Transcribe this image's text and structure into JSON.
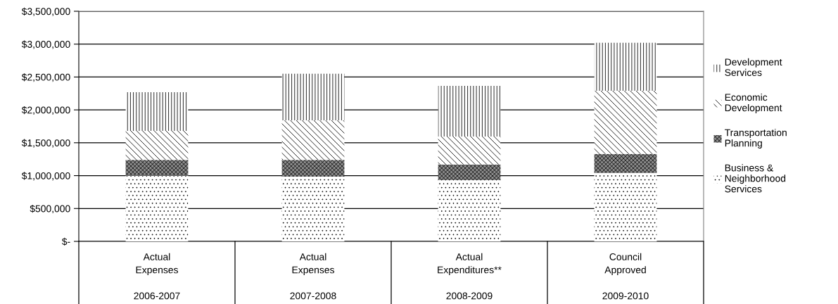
{
  "chart_data": {
    "type": "bar",
    "stacked": true,
    "categories": [
      "Actual\nExpenses\n\n2006-2007",
      "Actual\nExpenses\n\n2007-2008",
      "Actual\nExpenditures**\n\n2008-2009",
      "Council\nApproved\n\n2009-2010"
    ],
    "series": [
      {
        "name": "Business &\nNeighborhood\nServices",
        "color": "#ffffff",
        "values": [
          1000000,
          985000,
          930000,
          1040000
        ]
      },
      {
        "name": "Transportation\nPlanning",
        "color": "#8c8c8c",
        "values": [
          240000,
          255000,
          240000,
          290000
        ]
      },
      {
        "name": "Economic\nDevelopment",
        "color": "#ffffff",
        "values": [
          440000,
          600000,
          425000,
          960000
        ]
      },
      {
        "name": "Development\nServices",
        "color": "#ffffff",
        "values": [
          590000,
          710000,
          770000,
          730000
        ]
      }
    ],
    "ylim": [
      0,
      3500000
    ],
    "yticks": [
      {
        "value": 0,
        "label": "$-"
      },
      {
        "value": 500000,
        "label": "$500,000"
      },
      {
        "value": 1000000,
        "label": "$1,000,000"
      },
      {
        "value": 1500000,
        "label": "$1,500,000"
      },
      {
        "value": 2000000,
        "label": "$2,000,000"
      },
      {
        "value": 2500000,
        "label": "$2,500,000"
      },
      {
        "value": 3000000,
        "label": "$3,000,000"
      },
      {
        "value": 3500000,
        "label": "$3,500,000"
      }
    ],
    "grid": "y",
    "legend": "right"
  }
}
